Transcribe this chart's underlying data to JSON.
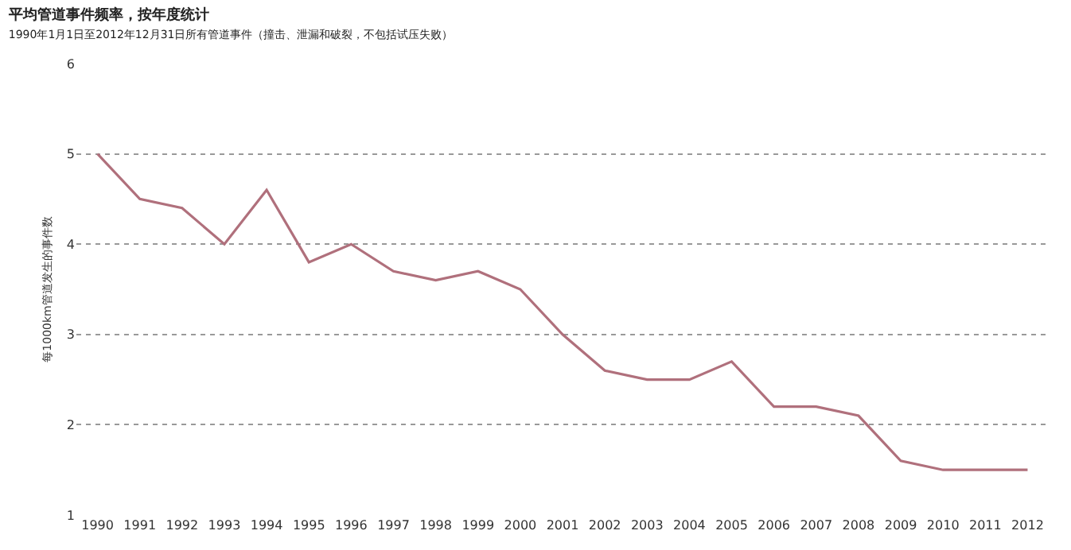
{
  "chart_data": {
    "type": "line",
    "title": "平均管道事件频率，按年度统计",
    "subtitle": "1990年1月1日至2012年12月31日所有管道事件（撞击、泄漏和破裂，不包括试压失败）",
    "ylabel": "每1000km管道发生的事件数",
    "categories": [
      "1990",
      "1991",
      "1992",
      "1993",
      "1994",
      "1995",
      "1996",
      "1997",
      "1998",
      "1999",
      "2000",
      "2001",
      "2002",
      "2003",
      "2004",
      "2005",
      "2006",
      "2007",
      "2008",
      "2009",
      "2010",
      "2011",
      "2012"
    ],
    "series": [
      {
        "color": "#b0707c",
        "values": [
          5.0,
          4.5,
          4.4,
          4.0,
          4.6,
          3.8,
          4.0,
          3.7,
          3.6,
          3.7,
          3.5,
          3.0,
          2.6,
          2.5,
          2.5,
          2.7,
          2.2,
          2.2,
          2.1,
          1.6,
          1.5,
          1.5,
          1.5
        ]
      }
    ],
    "ylim": [
      1,
      6
    ],
    "yticks": [
      1,
      2,
      3,
      4,
      5,
      6
    ],
    "grid": "y",
    "legend": false,
    "marker": "none",
    "line_style": "solid"
  }
}
